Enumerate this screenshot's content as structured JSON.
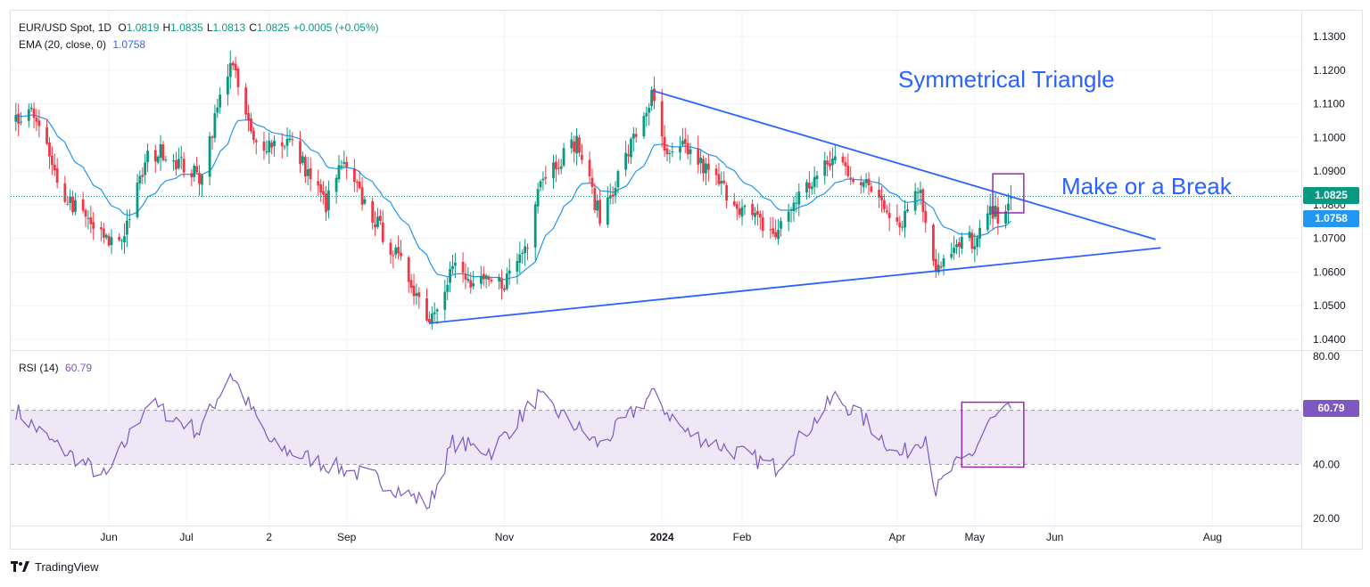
{
  "header": {
    "symbol": "EUR/USD Spot, 1D",
    "ohlc": [
      {
        "k": "O",
        "v": "1.0819"
      },
      {
        "k": "H",
        "v": "1.0835"
      },
      {
        "k": "L",
        "v": "1.0813"
      },
      {
        "k": "C",
        "v": "1.0825"
      },
      {
        "k": "",
        "v": "+0.0005 (+0.05%)"
      }
    ],
    "ema_label": "EMA (20, close, 0)",
    "ema_value": "1.0758",
    "rsi_label": "RSI (14)",
    "rsi_value": "60.79"
  },
  "annotations": {
    "pattern": "Symmetrical Triangle",
    "callout": "Make or a Break"
  },
  "badges": {
    "close": "1.0825",
    "ema": "1.0758",
    "rsi": "60.79"
  },
  "brand": "TradingView",
  "colors": {
    "up": "#089981",
    "down": "#f23645",
    "ema": "#2196f3",
    "trendline": "#2962ff",
    "rsi": "#7e57c2",
    "box": "#9c27b0",
    "rsi_band": "#ede7f6"
  },
  "chart_data": {
    "type": "candlestick",
    "price_axis": {
      "ylim": [
        1.036,
        1.134
      ],
      "ticks": [
        "1.1300",
        "1.1200",
        "1.1100",
        "1.1000",
        "1.0900",
        "1.0800",
        "1.0700",
        "1.0600",
        "1.0500",
        "1.0400"
      ]
    },
    "time_axis": {
      "ticks": [
        {
          "label": "Jun",
          "date": "2023-06-01"
        },
        {
          "label": "Jul",
          "date": "2023-07-01"
        },
        {
          "label": "2",
          "date": "2023-08-02"
        },
        {
          "label": "Sep",
          "date": "2023-09-01"
        },
        {
          "label": "Nov",
          "date": "2023-11-01"
        },
        {
          "label": "2024",
          "date": "2024-01-01",
          "bold": true
        },
        {
          "label": "Feb",
          "date": "2024-02-01"
        },
        {
          "label": "Apr",
          "date": "2024-04-01"
        },
        {
          "label": "May",
          "date": "2024-05-01"
        },
        {
          "label": "Jun",
          "date": "2024-06-01"
        },
        {
          "label": "Aug",
          "date": "2024-08-01"
        }
      ],
      "range": [
        "2023-04-24",
        "2024-09-03"
      ]
    },
    "close_anchors": [
      {
        "date": "2023-04-26",
        "close": 1.104
      },
      {
        "date": "2023-05-04",
        "close": 1.107
      },
      {
        "date": "2023-05-12",
        "close": 1.085
      },
      {
        "date": "2023-05-31",
        "close": 1.069
      },
      {
        "date": "2023-06-06",
        "close": 1.07
      },
      {
        "date": "2023-06-16",
        "close": 1.094
      },
      {
        "date": "2023-06-22",
        "close": 1.096
      },
      {
        "date": "2023-07-06",
        "close": 1.088
      },
      {
        "date": "2023-07-18",
        "close": 1.123
      },
      {
        "date": "2023-07-27",
        "close": 1.098
      },
      {
        "date": "2023-08-10",
        "close": 1.099
      },
      {
        "date": "2023-08-24",
        "close": 1.08
      },
      {
        "date": "2023-08-30",
        "close": 1.092
      },
      {
        "date": "2023-09-13",
        "close": 1.074
      },
      {
        "date": "2023-09-26",
        "close": 1.057
      },
      {
        "date": "2023-10-03",
        "close": 1.046
      },
      {
        "date": "2023-10-12",
        "close": 1.062
      },
      {
        "date": "2023-10-19",
        "close": 1.056
      },
      {
        "date": "2023-11-01",
        "close": 1.057
      },
      {
        "date": "2023-11-10",
        "close": 1.069
      },
      {
        "date": "2023-11-14",
        "close": 1.087
      },
      {
        "date": "2023-11-29",
        "close": 1.099
      },
      {
        "date": "2023-12-08",
        "close": 1.076
      },
      {
        "date": "2023-12-28",
        "close": 1.112
      },
      {
        "date": "2024-01-03",
        "close": 1.093
      },
      {
        "date": "2024-01-10",
        "close": 1.097
      },
      {
        "date": "2024-02-02",
        "close": 1.078
      },
      {
        "date": "2024-02-14",
        "close": 1.071
      },
      {
        "date": "2024-02-22",
        "close": 1.082
      },
      {
        "date": "2024-03-08",
        "close": 1.094
      },
      {
        "date": "2024-03-19",
        "close": 1.086
      },
      {
        "date": "2024-03-25",
        "close": 1.083
      },
      {
        "date": "2024-04-02",
        "close": 1.074
      },
      {
        "date": "2024-04-09",
        "close": 1.086
      },
      {
        "date": "2024-04-16",
        "close": 1.062
      },
      {
        "date": "2024-04-22",
        "close": 1.065
      },
      {
        "date": "2024-04-29",
        "close": 1.071
      },
      {
        "date": "2024-05-01",
        "close": 1.067
      },
      {
        "date": "2024-05-06",
        "close": 1.077
      },
      {
        "date": "2024-05-10",
        "close": 1.077
      },
      {
        "date": "2024-05-15",
        "close": 1.0825
      }
    ],
    "trendlines": [
      {
        "name": "upper",
        "from": {
          "date": "2023-12-28",
          "price": 1.114
        },
        "to": {
          "date": "2024-07-10",
          "price": 1.0697
        }
      },
      {
        "name": "lower",
        "from": {
          "date": "2023-10-03",
          "price": 1.0448
        },
        "to": {
          "date": "2024-07-12",
          "price": 1.0672
        }
      }
    ],
    "highlight_box_price": {
      "from_date": "2024-05-08",
      "to_date": "2024-05-20",
      "price_range": [
        1.0776,
        1.0892
      ]
    },
    "ema_period": 20,
    "rsi_panel": {
      "label": "RSI (14)",
      "ylim": [
        20,
        80
      ],
      "ticks": [
        "80.00",
        "40.00",
        "20.00"
      ],
      "band": [
        40,
        60
      ],
      "anchors": [
        {
          "date": "2023-04-26",
          "rsi": 60
        },
        {
          "date": "2023-05-10",
          "rsi": 48
        },
        {
          "date": "2023-05-31",
          "rsi": 35
        },
        {
          "date": "2023-06-16",
          "rsi": 63
        },
        {
          "date": "2023-07-06",
          "rsi": 52
        },
        {
          "date": "2023-07-18",
          "rsi": 74
        },
        {
          "date": "2023-08-03",
          "rsi": 47
        },
        {
          "date": "2023-08-24",
          "rsi": 40
        },
        {
          "date": "2023-09-12",
          "rsi": 35
        },
        {
          "date": "2023-10-03",
          "rsi": 25
        },
        {
          "date": "2023-10-12",
          "rsi": 48
        },
        {
          "date": "2023-10-27",
          "rsi": 45
        },
        {
          "date": "2023-11-14",
          "rsi": 65
        },
        {
          "date": "2023-12-08",
          "rsi": 47
        },
        {
          "date": "2023-12-28",
          "rsi": 66
        },
        {
          "date": "2024-01-10",
          "rsi": 52
        },
        {
          "date": "2024-02-14",
          "rsi": 39
        },
        {
          "date": "2024-03-08",
          "rsi": 65
        },
        {
          "date": "2024-03-20",
          "rsi": 56
        },
        {
          "date": "2024-04-02",
          "rsi": 43
        },
        {
          "date": "2024-04-12",
          "rsi": 51
        },
        {
          "date": "2024-04-16",
          "rsi": 30
        },
        {
          "date": "2024-04-22",
          "rsi": 38
        },
        {
          "date": "2024-05-01",
          "rsi": 45
        },
        {
          "date": "2024-05-06",
          "rsi": 55
        },
        {
          "date": "2024-05-15",
          "rsi": 60.79
        }
      ],
      "highlight_box": {
        "from_date": "2024-04-26",
        "to_date": "2024-05-20",
        "rsi_range": [
          39,
          63
        ]
      }
    }
  }
}
